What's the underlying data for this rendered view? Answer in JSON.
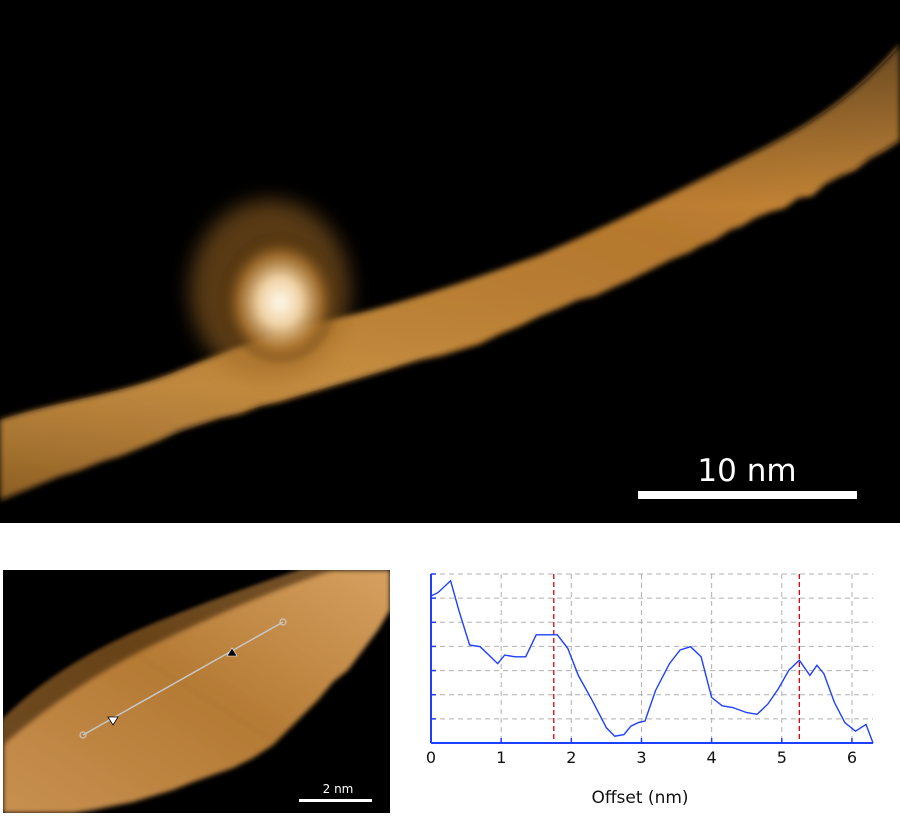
{
  "main_image": {
    "scale_bar_label": "10 nm",
    "colors": {
      "background": "#000000",
      "ribbon_dark": "#6b3d0c",
      "ribbon_mid": "#b0752a",
      "ribbon_light": "#d9a25c",
      "highlight": "#fff6e6"
    }
  },
  "inset_image": {
    "scale_bar_label": "2 nm",
    "line_color": "#c8c8c8"
  },
  "chart_data": {
    "type": "line",
    "title": "",
    "xlabel": "Offset (nm)",
    "ylabel": "",
    "xlim": [
      0,
      6.3
    ],
    "ylim": [
      0,
      1
    ],
    "xticks": [
      "0",
      "1",
      "2",
      "3",
      "4",
      "5",
      "6"
    ],
    "grid": true,
    "series": [
      {
        "color": "#1f3fff",
        "x": [
          0,
          0.1,
          0.28,
          0.4,
          0.55,
          0.7,
          0.85,
          0.95,
          1.05,
          1.2,
          1.35,
          1.5,
          1.65,
          1.8,
          1.95,
          2.1,
          2.3,
          2.5,
          2.62,
          2.75,
          2.85,
          2.95,
          3.05,
          3.2,
          3.4,
          3.55,
          3.7,
          3.85,
          4.0,
          4.15,
          4.3,
          4.5,
          4.65,
          4.8,
          4.95,
          5.1,
          5.25,
          5.4,
          5.5,
          5.6,
          5.75,
          5.9,
          6.05,
          6.2,
          6.3
        ],
        "y": [
          0.87,
          0.89,
          0.96,
          0.78,
          0.58,
          0.57,
          0.51,
          0.47,
          0.52,
          0.51,
          0.51,
          0.64,
          0.64,
          0.64,
          0.56,
          0.4,
          0.25,
          0.09,
          0.04,
          0.05,
          0.1,
          0.12,
          0.13,
          0.31,
          0.47,
          0.55,
          0.57,
          0.51,
          0.27,
          0.22,
          0.21,
          0.18,
          0.17,
          0.23,
          0.32,
          0.43,
          0.49,
          0.4,
          0.46,
          0.41,
          0.24,
          0.12,
          0.07,
          0.11,
          0.0
        ]
      }
    ],
    "markers": [
      {
        "x": 1.75,
        "color": "#e00000",
        "style": "dashed"
      },
      {
        "x": 5.25,
        "color": "#e00000",
        "style": "dashed"
      }
    ]
  }
}
